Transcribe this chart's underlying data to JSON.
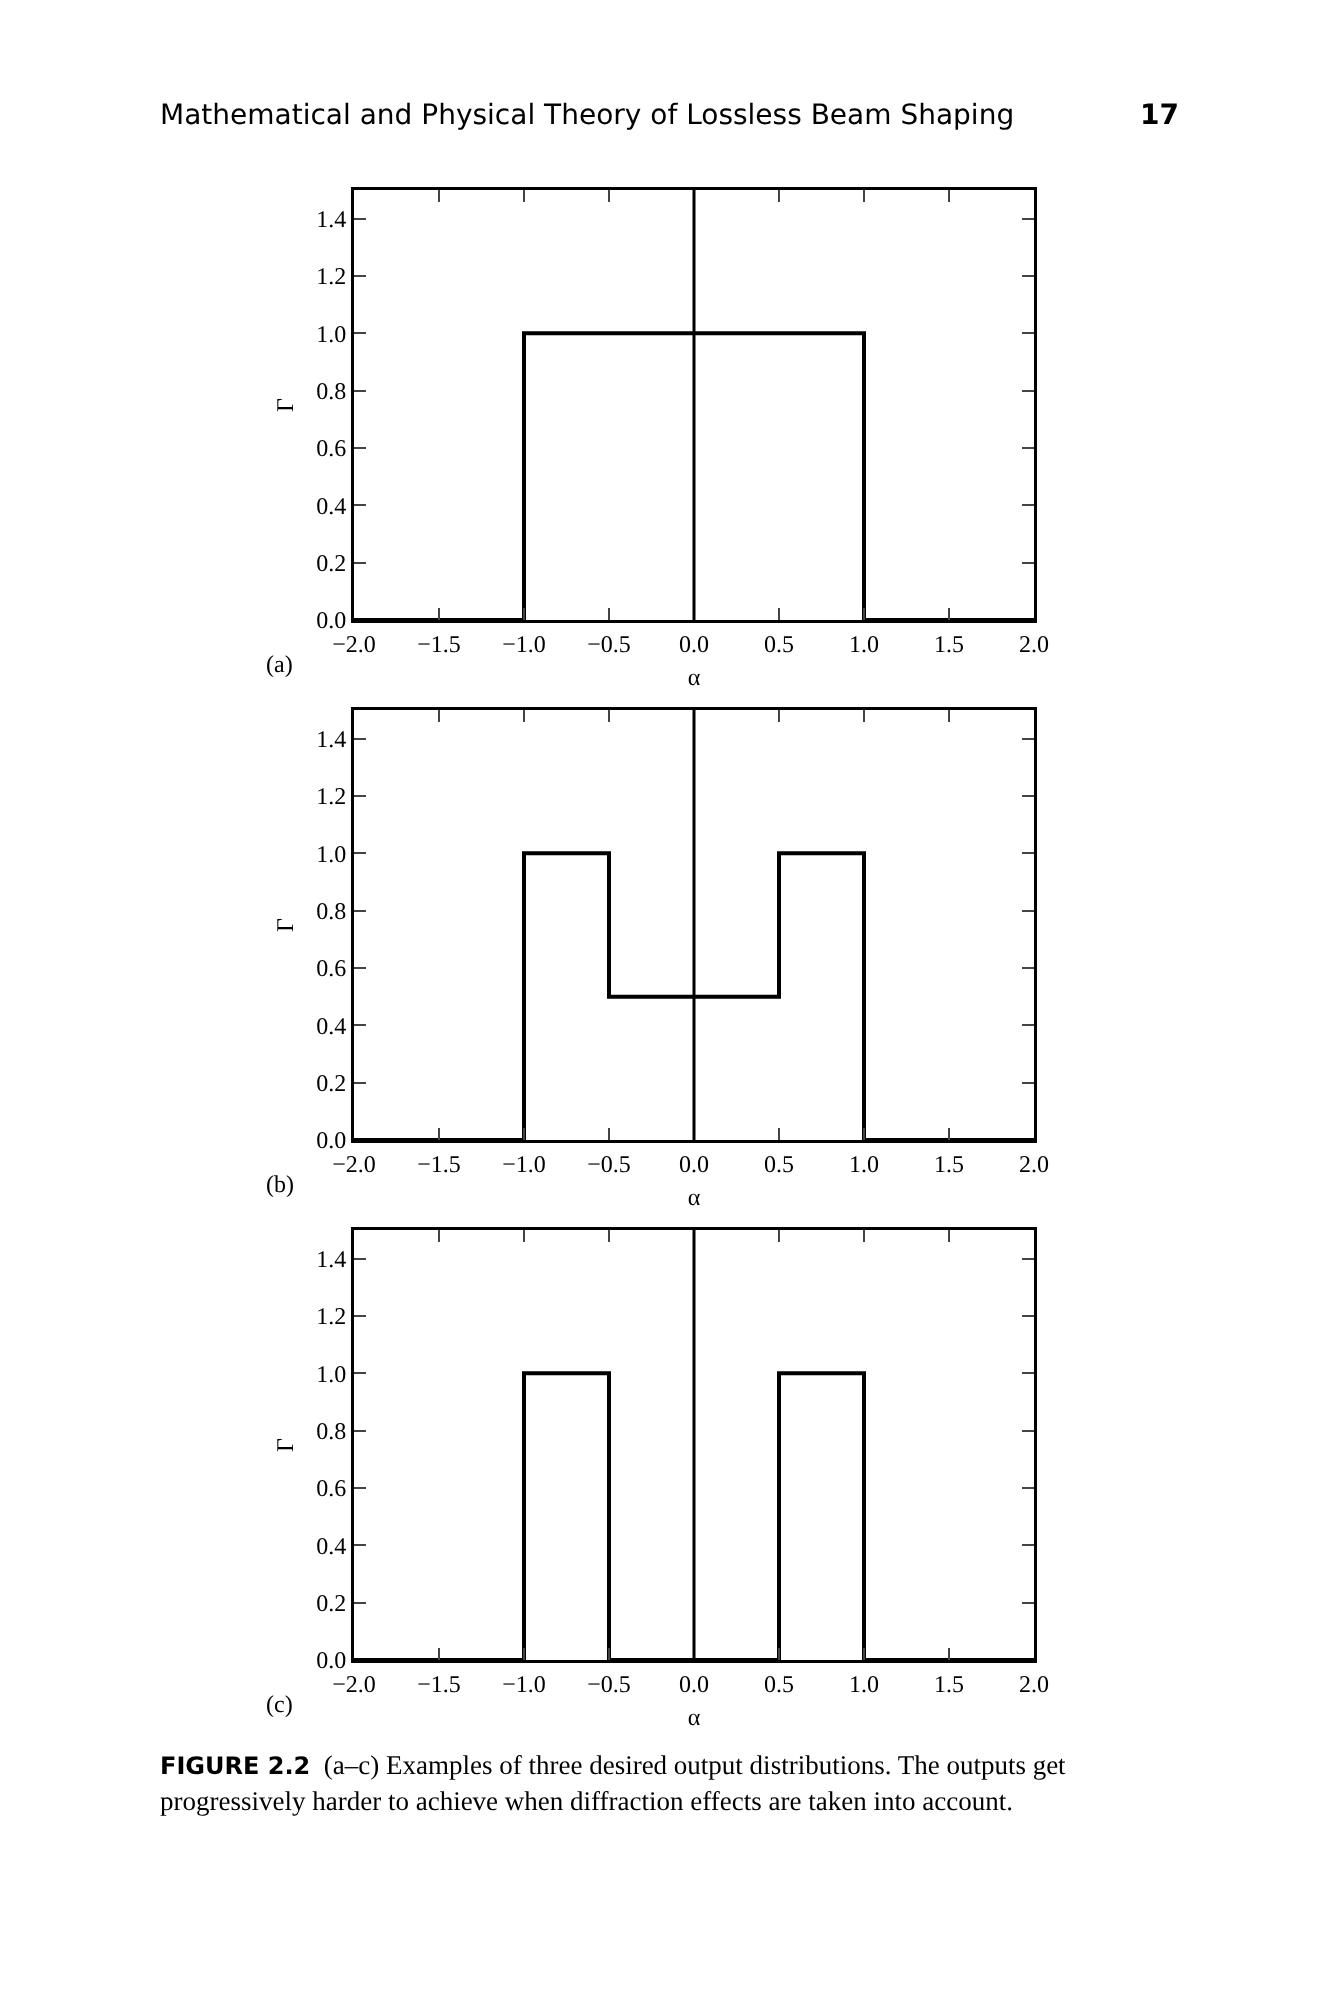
{
  "chart_data": [
    {
      "type": "step",
      "xlabel": "α",
      "ylabel": "Γ",
      "x": [
        -2,
        -1,
        1,
        2
      ],
      "values": [
        0,
        1,
        0,
        0
      ],
      "color": "#000000",
      "xlim": [
        -2,
        2
      ],
      "ylim": [
        0,
        1.5
      ],
      "xticks": [
        {
          "value": -2,
          "label": "−2.0"
        },
        {
          "value": -1.5,
          "label": "−1.5"
        },
        {
          "value": -1,
          "label": "−1.0"
        },
        {
          "value": -0.5,
          "label": "−0.5"
        },
        {
          "value": 0,
          "label": "0.0"
        },
        {
          "value": 0.5,
          "label": "0.5"
        },
        {
          "value": 1,
          "label": "1.0"
        },
        {
          "value": 1.5,
          "label": "1.5"
        },
        {
          "value": 2,
          "label": "2.0"
        }
      ],
      "yticks": [
        {
          "value": 0,
          "label": "0.0"
        },
        {
          "value": 0.2,
          "label": "0.2"
        },
        {
          "value": 0.4,
          "label": "0.4"
        },
        {
          "value": 0.6,
          "label": "0.6"
        },
        {
          "value": 0.8,
          "label": "0.8"
        },
        {
          "value": 1,
          "label": "1.0"
        },
        {
          "value": 1.2,
          "label": "1.2"
        },
        {
          "value": 1.4,
          "label": "1.4"
        }
      ],
      "ref_lines": [
        {
          "axis": "x",
          "value": 0,
          "color": "#000000"
        }
      ],
      "annotations": [
        "Mathematical and Physical Theory of Lossless Beam Shaping",
        "17",
        "(a)"
      ]
    },
    {
      "type": "step",
      "xlabel": "α",
      "ylabel": "Γ",
      "x": [
        -2,
        -1,
        -0.5,
        0.5,
        1,
        2
      ],
      "values": [
        0,
        1,
        0.5,
        1,
        0,
        0
      ],
      "color": "#000000",
      "xlim": [
        -2,
        2
      ],
      "ylim": [
        0,
        1.5
      ],
      "xticks": [
        {
          "value": -2,
          "label": "−2.0"
        },
        {
          "value": -1.5,
          "label": "−1.5"
        },
        {
          "value": -1,
          "label": "−1.0"
        },
        {
          "value": -0.5,
          "label": "−0.5"
        },
        {
          "value": 0,
          "label": "0.0"
        },
        {
          "value": 0.5,
          "label": "0.5"
        },
        {
          "value": 1,
          "label": "1.0"
        },
        {
          "value": 1.5,
          "label": "1.5"
        },
        {
          "value": 2,
          "label": "2.0"
        }
      ],
      "yticks": [
        {
          "value": 0,
          "label": "0.0"
        },
        {
          "value": 0.2,
          "label": "0.2"
        },
        {
          "value": 0.4,
          "label": "0.4"
        },
        {
          "value": 0.6,
          "label": "0.6"
        },
        {
          "value": 0.8,
          "label": "0.8"
        },
        {
          "value": 1,
          "label": "1.0"
        },
        {
          "value": 1.2,
          "label": "1.2"
        },
        {
          "value": 1.4,
          "label": "1.4"
        }
      ],
      "ref_lines": [
        {
          "axis": "x",
          "value": 0,
          "color": "#000000"
        }
      ],
      "annotations": [
        "(b)"
      ]
    },
    {
      "type": "step",
      "xlabel": "α",
      "ylabel": "Γ",
      "x": [
        -2,
        -1,
        -0.5,
        0.5,
        1,
        2
      ],
      "values": [
        0,
        1,
        0,
        1,
        0,
        0
      ],
      "color": "#000000",
      "xlim": [
        -2,
        2
      ],
      "ylim": [
        0,
        1.5
      ],
      "xticks": [
        {
          "value": -2,
          "label": "−2.0"
        },
        {
          "value": -1.5,
          "label": "−1.5"
        },
        {
          "value": -1,
          "label": "−1.0"
        },
        {
          "value": -0.5,
          "label": "−0.5"
        },
        {
          "value": 0,
          "label": "0.0"
        },
        {
          "value": 0.5,
          "label": "0.5"
        },
        {
          "value": 1,
          "label": "1.0"
        },
        {
          "value": 1.5,
          "label": "1.5"
        },
        {
          "value": 2,
          "label": "2.0"
        }
      ],
      "yticks": [
        {
          "value": 0,
          "label": "0.0"
        },
        {
          "value": 0.2,
          "label": "0.2"
        },
        {
          "value": 0.4,
          "label": "0.4"
        },
        {
          "value": 0.6,
          "label": "0.6"
        },
        {
          "value": 0.8,
          "label": "0.8"
        },
        {
          "value": 1,
          "label": "1.0"
        },
        {
          "value": 1.2,
          "label": "1.2"
        },
        {
          "value": 1.4,
          "label": "1.4"
        }
      ],
      "ref_lines": [
        {
          "axis": "x",
          "value": 0,
          "color": "#000000"
        }
      ],
      "annotations": [
        "(c)",
        "FIGURE 2.2 (a–c) Examples of three desired output distributions. The outputs get progressively harder to achieve when diffraction effects are taken into account."
      ]
    }
  ]
}
